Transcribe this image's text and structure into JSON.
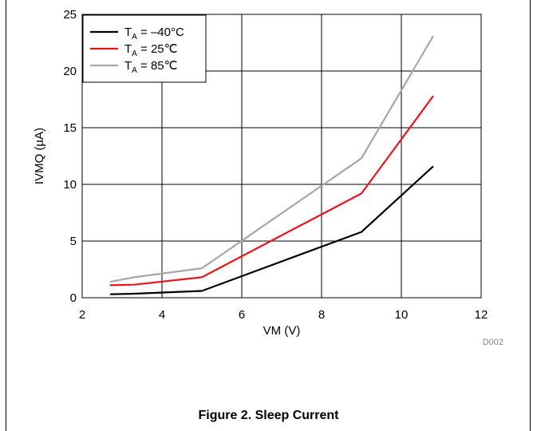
{
  "chart_data": {
    "type": "line",
    "xlabel": "VM (V)",
    "ylabel": "IVMQ (µA)",
    "xlim": [
      2,
      12
    ],
    "ylim": [
      0,
      25
    ],
    "xticks": [
      2,
      4,
      6,
      8,
      10,
      12
    ],
    "yticks": [
      0,
      5,
      10,
      15,
      20,
      25
    ],
    "grid": true,
    "legend_position": "top-left",
    "series": [
      {
        "name": "T_A = –40°C",
        "legend_prefix": "T",
        "legend_sub": "A",
        "legend_suffix": " = –40°C",
        "color": "#000000",
        "x": [
          2.7,
          3.3,
          5.0,
          9.0,
          10.8
        ],
        "y": [
          0.3,
          0.35,
          0.6,
          5.8,
          11.6
        ]
      },
      {
        "name": "T_A = 25℃",
        "legend_prefix": "T",
        "legend_sub": "A",
        "legend_suffix": " = 25℃",
        "color": "#e8141b",
        "x": [
          2.7,
          3.3,
          5.0,
          9.0,
          10.8
        ],
        "y": [
          1.1,
          1.15,
          1.8,
          9.2,
          17.8
        ]
      },
      {
        "name": "T_A = 85℃",
        "legend_prefix": "T",
        "legend_sub": "A",
        "legend_suffix": " = 85℃",
        "color": "#a6a6a6",
        "x": [
          2.7,
          3.3,
          5.0,
          9.0,
          10.8
        ],
        "y": [
          1.4,
          1.8,
          2.6,
          12.3,
          23.1
        ]
      }
    ]
  },
  "doc_id": "D002",
  "figure_caption": "Figure 2. Sleep Current"
}
